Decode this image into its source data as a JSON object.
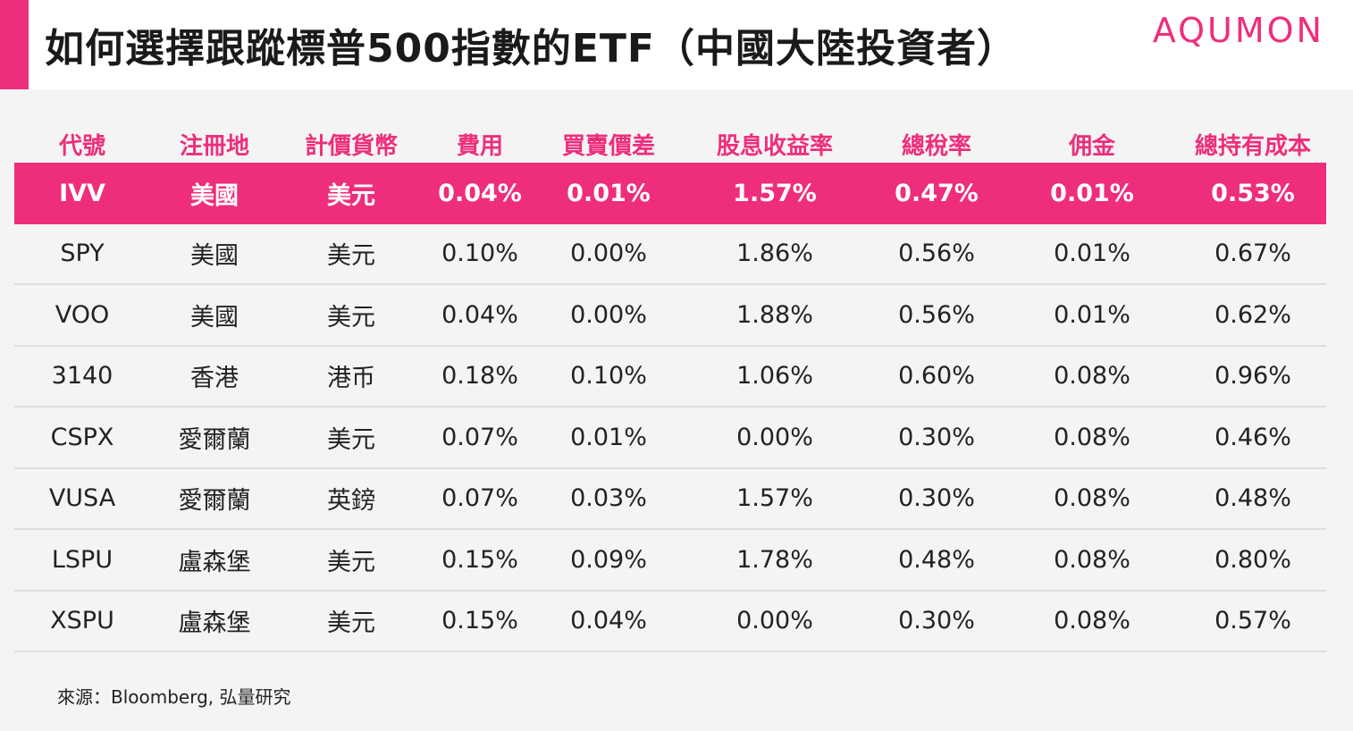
{
  "header": {
    "title": "如何選擇跟蹤標普500指數的ETF（中國大陸投資者）",
    "brand": "AQUMON"
  },
  "colors": {
    "accent": "#ee2e7c",
    "background": "#f4f4f4",
    "divider": "#dedede"
  },
  "table": {
    "columns": [
      "代號",
      "注冊地",
      "計價貨幣",
      "費用",
      "買賣價差",
      "股息收益率",
      "總稅率",
      "佣金",
      "總持有成本"
    ],
    "highlight_row": 0,
    "rows": [
      [
        "IVV",
        "美國",
        "美元",
        "0.04%",
        "0.01%",
        "1.57%",
        "0.47%",
        "0.01%",
        "0.53%"
      ],
      [
        "SPY",
        "美國",
        "美元",
        "0.10%",
        "0.00%",
        "1.86%",
        "0.56%",
        "0.01%",
        "0.67%"
      ],
      [
        "VOO",
        "美國",
        "美元",
        "0.04%",
        "0.00%",
        "1.88%",
        "0.56%",
        "0.01%",
        "0.62%"
      ],
      [
        "3140",
        "香港",
        "港币",
        "0.18%",
        "0.10%",
        "1.06%",
        "0.60%",
        "0.08%",
        "0.96%"
      ],
      [
        "CSPX",
        "愛爾蘭",
        "美元",
        "0.07%",
        "0.01%",
        "0.00%",
        "0.30%",
        "0.08%",
        "0.46%"
      ],
      [
        "VUSA",
        "愛爾蘭",
        "英鎊",
        "0.07%",
        "0.03%",
        "1.57%",
        "0.30%",
        "0.08%",
        "0.48%"
      ],
      [
        "LSPU",
        "盧森堡",
        "美元",
        "0.15%",
        "0.09%",
        "1.78%",
        "0.48%",
        "0.08%",
        "0.80%"
      ],
      [
        "XSPU",
        "盧森堡",
        "美元",
        "0.15%",
        "0.04%",
        "0.00%",
        "0.30%",
        "0.08%",
        "0.57%"
      ]
    ]
  },
  "footer": {
    "source": "來源：Bloomberg, 弘量研究"
  }
}
